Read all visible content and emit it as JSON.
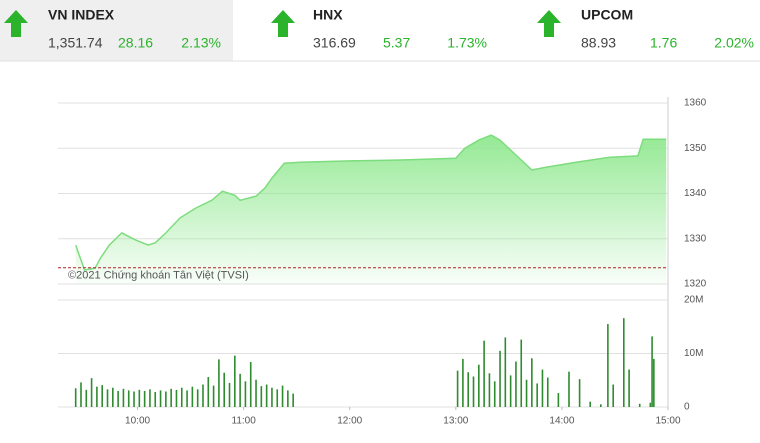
{
  "header": {
    "indices": [
      {
        "name": "VN INDEX",
        "value": "1,351.74",
        "change": "28.16",
        "percent": "2.13%"
      },
      {
        "name": "HNX",
        "value": "316.69",
        "change": "5.37",
        "percent": "1.73%"
      },
      {
        "name": "UPCOM",
        "value": "88.93",
        "change": "1.76",
        "percent": "2.02%"
      }
    ]
  },
  "chart_data": [
    {
      "type": "line",
      "annotation": "©2021 Chứng khoán Tân Việt (TVSI)",
      "color": "#7ddc7d",
      "fill": "#9ff09f",
      "reference": 1323.6,
      "reference_color": "#b22222",
      "x": [
        565,
        570,
        576,
        579,
        584,
        591,
        599,
        606,
        610,
        616,
        624,
        633,
        642,
        648,
        655,
        658,
        667,
        672,
        676,
        683,
        692,
        720,
        749,
        780,
        785,
        793,
        800,
        805,
        814,
        823,
        831,
        848,
        867,
        883,
        886,
        899
      ],
      "values": [
        1328.6,
        1323.1,
        1323.5,
        1325.7,
        1328.6,
        1331.3,
        1329.7,
        1328.6,
        1329.1,
        1331.3,
        1334.6,
        1336.8,
        1338.5,
        1340.5,
        1339.6,
        1338.5,
        1339.4,
        1341.2,
        1343.4,
        1346.7,
        1346.9,
        1347.2,
        1347.4,
        1347.8,
        1350.0,
        1351.8,
        1352.9,
        1351.8,
        1348.5,
        1345.2,
        1345.8,
        1346.9,
        1348.0,
        1348.3,
        1352.0,
        1352.0
      ],
      "xlim": [
        555,
        900
      ],
      "ylim": [
        1320,
        1360
      ],
      "yticks": [
        1320,
        1330,
        1340,
        1350,
        1360
      ],
      "grid": true
    },
    {
      "type": "bar",
      "color": "#2e8b2e",
      "x": [
        565,
        568,
        571,
        574,
        577,
        580,
        583,
        586,
        589,
        592,
        595,
        598,
        601,
        604,
        607,
        610,
        613,
        616,
        619,
        622,
        625,
        628,
        631,
        634,
        637,
        640,
        643,
        646,
        649,
        652,
        655,
        658,
        661,
        664,
        667,
        670,
        673,
        676,
        679,
        682,
        685,
        688,
        781,
        784,
        787,
        790,
        793,
        796,
        799,
        802,
        805,
        808,
        811,
        814,
        817,
        820,
        823,
        826,
        829,
        832,
        838,
        844,
        850,
        856,
        862,
        866,
        869,
        875,
        878,
        884,
        890,
        891,
        892
      ],
      "values": [
        3.5,
        4.6,
        3.2,
        5.4,
        3.8,
        4.1,
        3.3,
        3.6,
        3.0,
        3.4,
        3.1,
        2.9,
        3.2,
        3.0,
        3.3,
        2.8,
        3.1,
        2.9,
        3.4,
        3.2,
        3.6,
        3.1,
        3.8,
        3.3,
        4.2,
        5.6,
        4.0,
        8.9,
        6.4,
        4.5,
        9.6,
        6.2,
        4.8,
        8.4,
        5.1,
        3.9,
        4.2,
        3.6,
        3.3,
        4.0,
        3.1,
        2.5,
        6.8,
        9.0,
        6.5,
        5.7,
        7.9,
        12.4,
        6.3,
        4.8,
        10.5,
        13.0,
        5.9,
        8.5,
        12.6,
        5.1,
        9.1,
        4.4,
        7.0,
        5.5,
        2.6,
        6.6,
        5.2,
        1.0,
        0.5,
        15.5,
        4.2,
        16.6,
        7.0,
        0.6,
        0.8,
        13.2,
        9.0
      ],
      "xlim": [
        555,
        900
      ],
      "ylim": [
        0,
        20
      ],
      "yticks": [
        0,
        {
          "value": 10,
          "label": "10M"
        },
        {
          "value": 20,
          "label": "20M"
        }
      ],
      "xticks": [
        {
          "value": 600,
          "label": "10:00"
        },
        {
          "value": 660,
          "label": "11:00"
        },
        {
          "value": 720,
          "label": "12:00"
        },
        {
          "value": 780,
          "label": "13:00"
        },
        {
          "value": 840,
          "label": "14:00"
        },
        {
          "value": 900,
          "label": "15:00"
        }
      ],
      "grid": true
    }
  ]
}
